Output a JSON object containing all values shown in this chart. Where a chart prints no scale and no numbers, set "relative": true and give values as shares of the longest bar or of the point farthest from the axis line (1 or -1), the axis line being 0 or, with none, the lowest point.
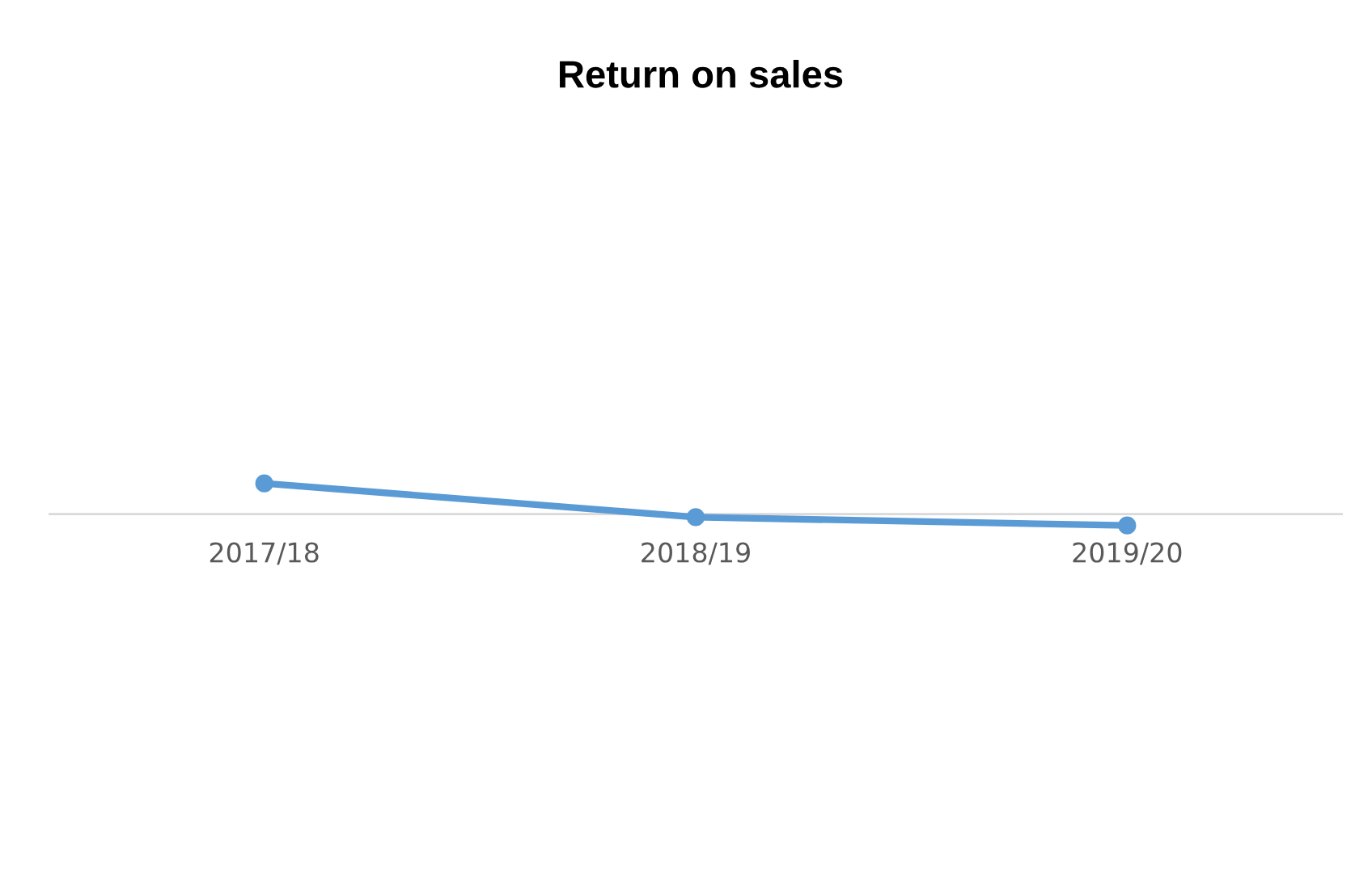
{
  "chart_data": {
    "type": "line",
    "title": "Return on sales",
    "categories": [
      "2017/18",
      "2018/19",
      "2019/20"
    ],
    "series": [
      {
        "color": "#5b9bd5",
        "values": [
          1,
          -0.1,
          -0.37
        ]
      }
    ],
    "relative": true,
    "marker": "circle",
    "line_style": "solid",
    "legend": false
  }
}
